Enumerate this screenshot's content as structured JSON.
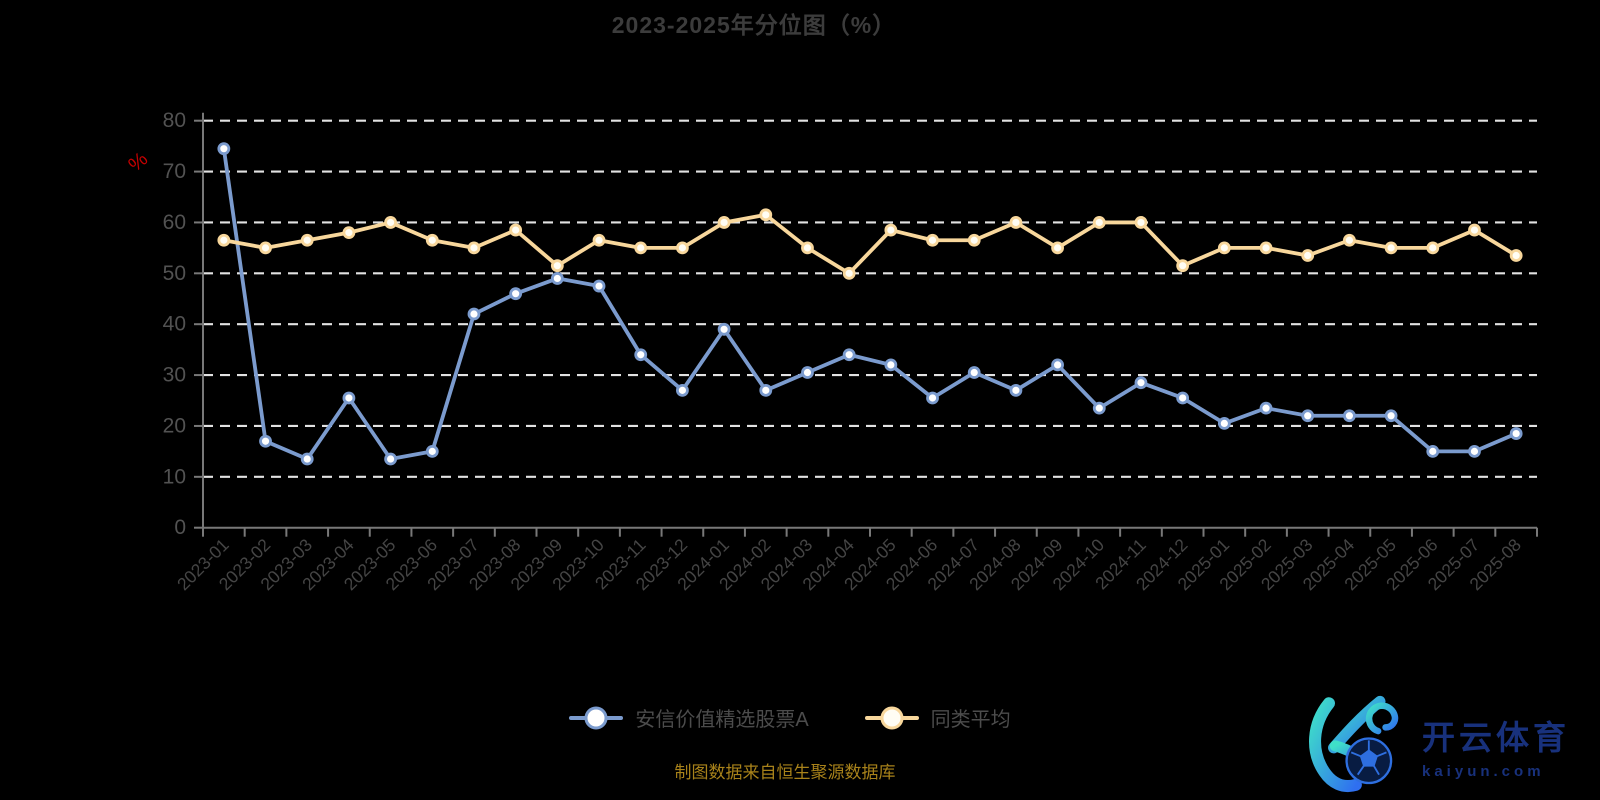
{
  "title": "2023-2025年分位图（%）",
  "y_axis_unit": "%",
  "source_note": "制图数据来自恒生聚源数据库",
  "brand": {
    "name_cn": "开云体育",
    "domain": "kaiyun.com",
    "navy": "#18317c",
    "gradient_start": "#3fe0c8",
    "gradient_end": "#2f6ff0",
    "ball_fill": "#081c42",
    "ball_line": "#2e6fe0"
  },
  "colors": {
    "background": "#000000",
    "title_text": "#3c3c3c",
    "axis_line": "#787878",
    "grid_line": "#e2e2e2",
    "y_label": "#525252",
    "x_label": "#454545",
    "legend_text": "#4c4c4c",
    "unit_label": "#c40000",
    "source_text": "#a8821a"
  },
  "chart_data": {
    "type": "line",
    "title": "2023-2025年分位图（%）",
    "categories": [
      "2023-01",
      "2023-02",
      "2023-03",
      "2023-04",
      "2023-05",
      "2023-06",
      "2023-07",
      "2023-08",
      "2023-09",
      "2023-10",
      "2023-11",
      "2023-12",
      "2024-01",
      "2024-02",
      "2024-03",
      "2024-04",
      "2024-05",
      "2024-06",
      "2024-07",
      "2024-08",
      "2024-09",
      "2024-10",
      "2024-11",
      "2024-12",
      "2025-01",
      "2025-02",
      "2025-03",
      "2025-04",
      "2025-05",
      "2025-06",
      "2025-07",
      "2025-08"
    ],
    "series": [
      {
        "id": "fund",
        "name": "安信价值精选股票A",
        "color": "#7b9bce",
        "marker_fill": "#ffffff",
        "values": [
          74.5,
          17,
          13.5,
          25.5,
          13.5,
          15,
          42,
          46,
          49,
          47.5,
          34,
          27,
          39,
          27,
          30.5,
          34,
          32,
          25.5,
          30.5,
          27,
          32,
          23.5,
          28.5,
          25.5,
          20.5,
          23.5,
          22,
          22,
          22,
          15,
          15,
          18.5
        ]
      },
      {
        "id": "peer-average",
        "name": "同类平均",
        "color": "#f8d79c",
        "marker_fill": "#fffdf4",
        "values": [
          56.5,
          55,
          56.5,
          58,
          60,
          56.5,
          55,
          58.5,
          51.5,
          56.5,
          55,
          55,
          60,
          61.5,
          55,
          50,
          58.5,
          56.5,
          56.5,
          60,
          55,
          60,
          60,
          51.5,
          55,
          55,
          53.5,
          56.5,
          55,
          55,
          58.5,
          53.5
        ]
      }
    ],
    "ylabel": "%",
    "ylim": [
      0,
      80
    ],
    "y_ticks": [
      0,
      10,
      20,
      30,
      40,
      50,
      60,
      70,
      80
    ],
    "grid": "horizontal-dashed-white",
    "legend_position": "bottom"
  }
}
